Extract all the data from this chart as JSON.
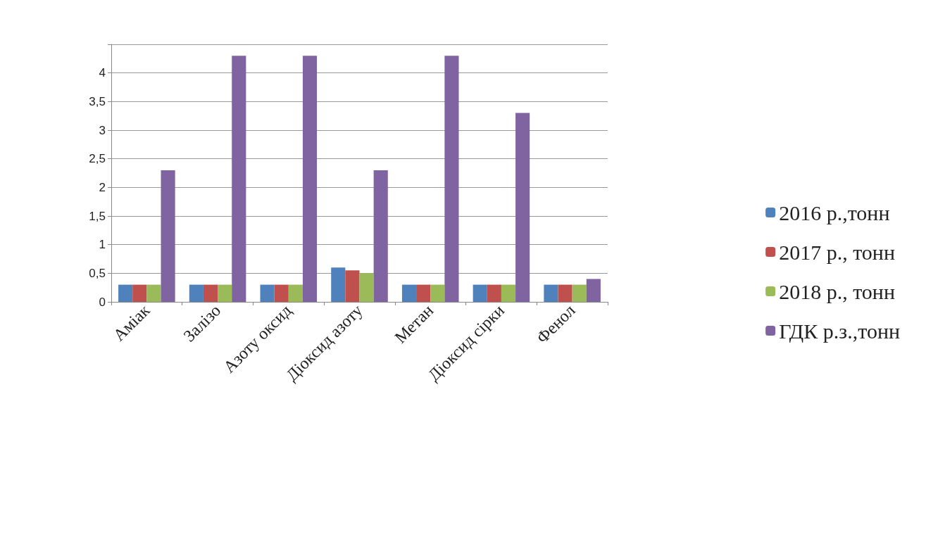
{
  "chart_data": {
    "type": "bar",
    "categories": [
      "Аміак",
      "Залізо",
      "Азоту оксид",
      "Діоксид азоту",
      "Метан",
      "Діоксид сірки",
      "Фенол"
    ],
    "series": [
      {
        "name": "2016 р.,тонн",
        "color": "#4f81bd",
        "values": [
          0.3,
          0.3,
          0.3,
          0.6,
          0.3,
          0.3,
          0.3
        ]
      },
      {
        "name": "2017 р., тонн",
        "color": "#c0504d",
        "values": [
          0.3,
          0.3,
          0.3,
          0.55,
          0.3,
          0.3,
          0.3
        ]
      },
      {
        "name": "2018 р., тонн",
        "color": "#9bbb59",
        "values": [
          0.3,
          0.3,
          0.3,
          0.5,
          0.3,
          0.3,
          0.3
        ]
      },
      {
        "name": "ГДК р.з.,тонн",
        "color": "#8064a2",
        "values": [
          2.3,
          4.3,
          4.3,
          2.3,
          4.3,
          3.3,
          0.4
        ]
      }
    ],
    "ylim": [
      0,
      4.5
    ],
    "yticks": [
      0,
      {
        "value": 0.5,
        "label": "0,5"
      },
      1,
      {
        "value": 1.5,
        "label": "1,5"
      },
      2,
      {
        "value": 2.5,
        "label": "2,5"
      },
      3,
      {
        "value": 3.5,
        "label": "3,5"
      },
      4,
      {
        "value": 4.5,
        "label": null
      }
    ],
    "grid": "y",
    "legend": "right"
  }
}
